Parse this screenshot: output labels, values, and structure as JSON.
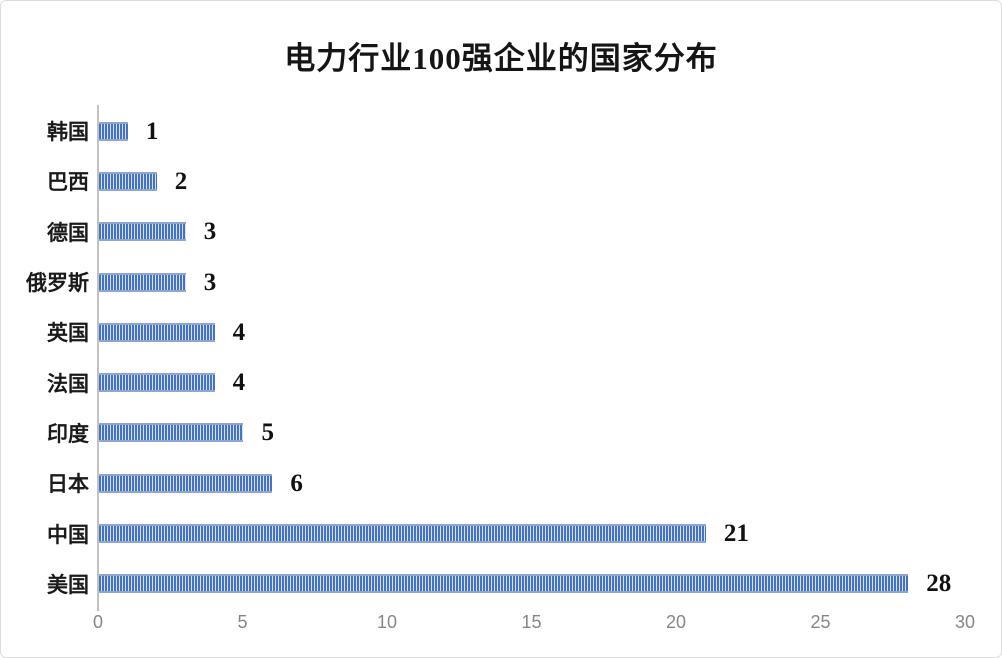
{
  "chart_data": {
    "type": "bar",
    "orientation": "horizontal",
    "title": "电力行业100强企业的国家分布",
    "categories": [
      "韩国",
      "巴西",
      "德国",
      "俄罗斯",
      "英国",
      "法国",
      "印度",
      "日本",
      "中国",
      "美国"
    ],
    "values": [
      1,
      2,
      3,
      3,
      4,
      4,
      5,
      6,
      21,
      28
    ],
    "data_labels": [
      1,
      2,
      3,
      3,
      4,
      4,
      5,
      6,
      21,
      28
    ],
    "xlabel": "",
    "ylabel": "",
    "xlim": [
      0,
      30
    ],
    "x_ticks": [
      0,
      5,
      10,
      15,
      20,
      25,
      30
    ],
    "grid": "off",
    "legend": "none",
    "bar_color": "#4472c4",
    "bar_pattern": "vertical-stripes",
    "bar_edge_color": "#90a6d2",
    "axis_line_color": "#c2c2c2",
    "tick_label_color": "#868686",
    "title_color": "#151515",
    "background_color": "#ffffff"
  }
}
